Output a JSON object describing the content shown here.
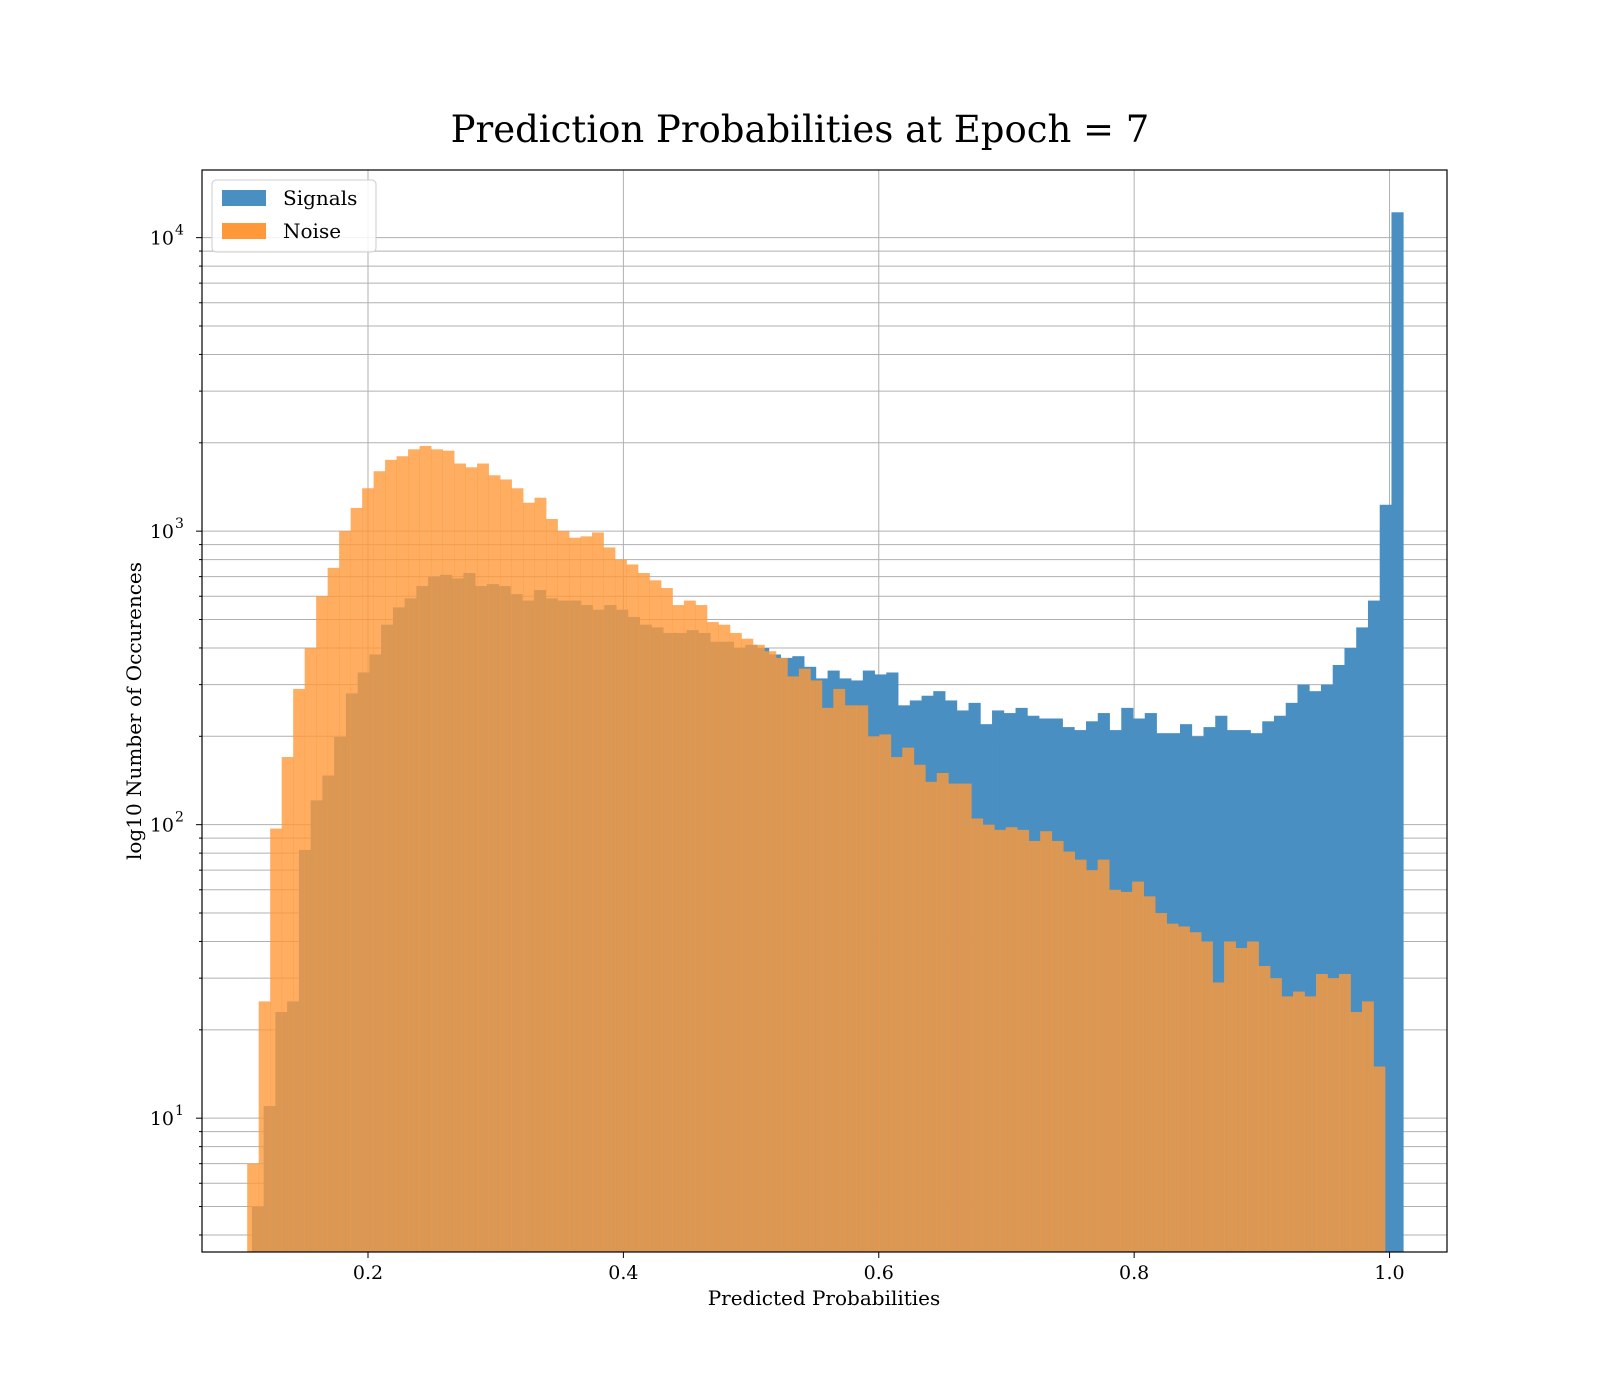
{
  "chart_data": {
    "type": "bar",
    "title": "Prediction Probabilities at Epoch = 7",
    "xlabel": "Predicted Probabilities",
    "ylabel": "log10 Number of Occurences",
    "xlim": [
      0.07,
      1.045
    ],
    "ylim": [
      3.5,
      17000
    ],
    "yscale": "log",
    "grid": true,
    "legend_position": "top-left",
    "x_ticks": [
      {
        "value": 0.2,
        "label": "0.2"
      },
      {
        "value": 0.4,
        "label": "0.4"
      },
      {
        "value": 0.6,
        "label": "0.6"
      },
      {
        "value": 0.8,
        "label": "0.8"
      },
      {
        "value": 1.0,
        "label": "1.0"
      }
    ],
    "y_ticks": [
      {
        "value": 10,
        "base": "10",
        "exp": "1"
      },
      {
        "value": 100,
        "base": "10",
        "exp": "2"
      },
      {
        "value": 1000,
        "base": "10",
        "exp": "3"
      },
      {
        "value": 10000,
        "base": "10",
        "exp": "4"
      }
    ],
    "series": [
      {
        "name": "Signals",
        "color": "#4a8fc2",
        "bins": [
          [
            0.1183,
            5
          ],
          [
            0.1275,
            11
          ],
          [
            0.1367,
            23
          ],
          [
            0.1459,
            25
          ],
          [
            0.1551,
            82
          ],
          [
            0.1643,
            121
          ],
          [
            0.1735,
            147
          ],
          [
            0.1827,
            199
          ],
          [
            0.1919,
            280
          ],
          [
            0.2011,
            330
          ],
          [
            0.2103,
            380
          ],
          [
            0.2195,
            480
          ],
          [
            0.2287,
            550
          ],
          [
            0.2379,
            590
          ],
          [
            0.2471,
            650
          ],
          [
            0.2563,
            700
          ],
          [
            0.2655,
            710
          ],
          [
            0.2747,
            690
          ],
          [
            0.2839,
            720
          ],
          [
            0.2931,
            650
          ],
          [
            0.3023,
            660
          ],
          [
            0.3115,
            650
          ],
          [
            0.3207,
            610
          ],
          [
            0.3299,
            580
          ],
          [
            0.3391,
            630
          ],
          [
            0.3483,
            590
          ],
          [
            0.3575,
            580
          ],
          [
            0.3667,
            580
          ],
          [
            0.3759,
            560
          ],
          [
            0.3851,
            540
          ],
          [
            0.3943,
            560
          ],
          [
            0.4035,
            540
          ],
          [
            0.4127,
            510
          ],
          [
            0.4219,
            480
          ],
          [
            0.4311,
            470
          ],
          [
            0.4403,
            450
          ],
          [
            0.4495,
            450
          ],
          [
            0.4587,
            460
          ],
          [
            0.4679,
            450
          ],
          [
            0.4771,
            420
          ],
          [
            0.4863,
            420
          ],
          [
            0.4955,
            400
          ],
          [
            0.5047,
            410
          ],
          [
            0.5139,
            400
          ],
          [
            0.5231,
            380
          ],
          [
            0.5323,
            370
          ],
          [
            0.5415,
            375
          ],
          [
            0.5507,
            345
          ],
          [
            0.5599,
            315
          ],
          [
            0.5691,
            335
          ],
          [
            0.5783,
            315
          ],
          [
            0.5875,
            310
          ],
          [
            0.5967,
            335
          ],
          [
            0.6059,
            325
          ],
          [
            0.6151,
            330
          ],
          [
            0.6243,
            255
          ],
          [
            0.6335,
            265
          ],
          [
            0.6427,
            275
          ],
          [
            0.6519,
            285
          ],
          [
            0.6611,
            265
          ],
          [
            0.6703,
            245
          ],
          [
            0.6795,
            260
          ],
          [
            0.6887,
            220
          ],
          [
            0.6979,
            245
          ],
          [
            0.7071,
            240
          ],
          [
            0.7163,
            250
          ],
          [
            0.7255,
            235
          ],
          [
            0.7347,
            230
          ],
          [
            0.7439,
            230
          ],
          [
            0.7531,
            215
          ],
          [
            0.7623,
            210
          ],
          [
            0.7715,
            225
          ],
          [
            0.7807,
            240
          ],
          [
            0.7899,
            210
          ],
          [
            0.7991,
            250
          ],
          [
            0.8083,
            230
          ],
          [
            0.8175,
            240
          ],
          [
            0.8267,
            205
          ],
          [
            0.8359,
            205
          ],
          [
            0.8451,
            220
          ],
          [
            0.8543,
            200
          ],
          [
            0.8635,
            215
          ],
          [
            0.8727,
            235
          ],
          [
            0.8819,
            210
          ],
          [
            0.8911,
            210
          ],
          [
            0.9003,
            205
          ],
          [
            0.9095,
            225
          ],
          [
            0.9187,
            235
          ],
          [
            0.9279,
            260
          ],
          [
            0.9371,
            300
          ],
          [
            0.9463,
            285
          ],
          [
            0.9555,
            300
          ],
          [
            0.9647,
            350
          ],
          [
            0.9739,
            400
          ],
          [
            0.9831,
            470
          ],
          [
            0.9923,
            580
          ],
          [
            1.0015,
            1230
          ],
          [
            1.0107,
            12200
          ]
        ]
      },
      {
        "name": "Noise",
        "color": "#ff9838",
        "bins": [
          [
            0.1144,
            7
          ],
          [
            0.1234,
            25
          ],
          [
            0.1324,
            97
          ],
          [
            0.1414,
            170
          ],
          [
            0.1504,
            290
          ],
          [
            0.1594,
            400
          ],
          [
            0.1684,
            600
          ],
          [
            0.1774,
            750
          ],
          [
            0.1864,
            1000
          ],
          [
            0.1954,
            1200
          ],
          [
            0.2044,
            1400
          ],
          [
            0.2134,
            1600
          ],
          [
            0.2224,
            1750
          ],
          [
            0.2314,
            1800
          ],
          [
            0.2404,
            1900
          ],
          [
            0.2494,
            1950
          ],
          [
            0.2584,
            1900
          ],
          [
            0.2674,
            1880
          ],
          [
            0.2764,
            1700
          ],
          [
            0.2854,
            1650
          ],
          [
            0.2944,
            1700
          ],
          [
            0.3034,
            1550
          ],
          [
            0.3124,
            1500
          ],
          [
            0.3214,
            1400
          ],
          [
            0.3304,
            1250
          ],
          [
            0.3394,
            1300
          ],
          [
            0.3484,
            1100
          ],
          [
            0.3574,
            1000
          ],
          [
            0.3664,
            950
          ],
          [
            0.3754,
            960
          ],
          [
            0.3844,
            990
          ],
          [
            0.3934,
            880
          ],
          [
            0.4024,
            800
          ],
          [
            0.4114,
            770
          ],
          [
            0.4204,
            720
          ],
          [
            0.4294,
            680
          ],
          [
            0.4384,
            640
          ],
          [
            0.4474,
            560
          ],
          [
            0.4564,
            580
          ],
          [
            0.4654,
            560
          ],
          [
            0.4744,
            490
          ],
          [
            0.4834,
            480
          ],
          [
            0.4924,
            450
          ],
          [
            0.5014,
            430
          ],
          [
            0.5104,
            410
          ],
          [
            0.5194,
            390
          ],
          [
            0.5284,
            370
          ],
          [
            0.5374,
            320
          ],
          [
            0.5464,
            340
          ],
          [
            0.5554,
            310
          ],
          [
            0.5644,
            250
          ],
          [
            0.5734,
            290
          ],
          [
            0.5824,
            255
          ],
          [
            0.5914,
            255
          ],
          [
            0.6004,
            200
          ],
          [
            0.6094,
            203
          ],
          [
            0.6184,
            170
          ],
          [
            0.6274,
            183
          ],
          [
            0.6364,
            160
          ],
          [
            0.6454,
            140
          ],
          [
            0.6544,
            150
          ],
          [
            0.6634,
            138
          ],
          [
            0.6724,
            138
          ],
          [
            0.6814,
            105
          ],
          [
            0.6904,
            100
          ],
          [
            0.6994,
            96
          ],
          [
            0.7084,
            98
          ],
          [
            0.7174,
            96
          ],
          [
            0.7264,
            88
          ],
          [
            0.7354,
            95
          ],
          [
            0.7444,
            88
          ],
          [
            0.7534,
            81
          ],
          [
            0.7624,
            76
          ],
          [
            0.7714,
            70
          ],
          [
            0.7804,
            76
          ],
          [
            0.7894,
            60
          ],
          [
            0.7984,
            59
          ],
          [
            0.8074,
            64
          ],
          [
            0.8164,
            57
          ],
          [
            0.8254,
            50
          ],
          [
            0.8344,
            46
          ],
          [
            0.8434,
            45
          ],
          [
            0.8524,
            43
          ],
          [
            0.8614,
            40
          ],
          [
            0.8704,
            29
          ],
          [
            0.8794,
            40
          ],
          [
            0.8884,
            38
          ],
          [
            0.8974,
            40
          ],
          [
            0.9064,
            33
          ],
          [
            0.9154,
            30
          ],
          [
            0.9244,
            26
          ],
          [
            0.9334,
            27
          ],
          [
            0.9424,
            26
          ],
          [
            0.9514,
            31
          ],
          [
            0.9604,
            30
          ],
          [
            0.9694,
            31
          ],
          [
            0.9784,
            23
          ],
          [
            0.9874,
            25
          ],
          [
            0.9964,
            15
          ]
        ]
      }
    ]
  }
}
